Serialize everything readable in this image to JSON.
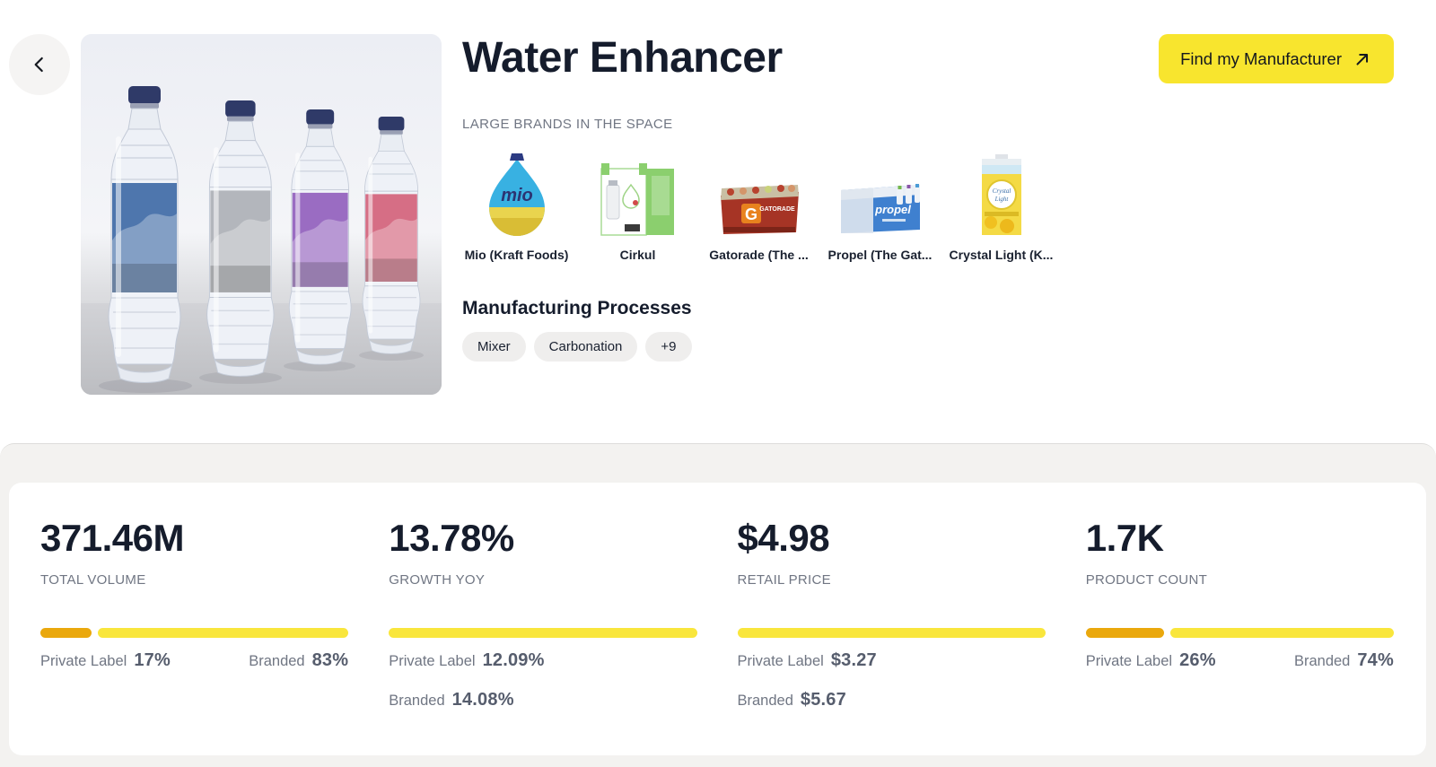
{
  "header": {
    "title": "Water Enhancer",
    "brands_heading": "LARGE BRANDS IN THE SPACE",
    "brands": [
      {
        "name": "Mio (Kraft Foods)",
        "icon": "mio-bottle"
      },
      {
        "name": "Cirkul",
        "icon": "cirkul-box"
      },
      {
        "name": "Gatorade (The ...",
        "icon": "gatorade-pack"
      },
      {
        "name": "Propel (The Gat...",
        "icon": "propel-pack"
      },
      {
        "name": "Crystal Light (K...",
        "icon": "crystal-light-box"
      }
    ],
    "processes_heading": "Manufacturing Processes",
    "process_tags": [
      "Mixer",
      "Carbonation",
      "+9"
    ],
    "cta_label": "Find my Manufacturer"
  },
  "stats": [
    {
      "value": "371.46M",
      "label": "TOTAL VOLUME",
      "segments": [
        {
          "color": "amber",
          "pct": 17
        },
        {
          "color": "yellow",
          "pct": 83
        }
      ],
      "breakdown_layout": "row",
      "items": [
        {
          "label": "Private Label",
          "value": "17%"
        },
        {
          "label": "Branded",
          "value": "83%"
        }
      ]
    },
    {
      "value": "13.78%",
      "label": "GROWTH YOY",
      "segments": [
        {
          "color": "yellow",
          "pct": 100
        }
      ],
      "breakdown_layout": "stack",
      "items": [
        {
          "label": "Private Label",
          "value": "12.09%"
        },
        {
          "label": "Branded",
          "value": "14.08%"
        }
      ]
    },
    {
      "value": "$4.98",
      "label": "RETAIL PRICE",
      "segments": [
        {
          "color": "yellow",
          "pct": 100
        }
      ],
      "breakdown_layout": "stack",
      "items": [
        {
          "label": "Private Label",
          "value": "$3.27"
        },
        {
          "label": "Branded",
          "value": "$5.67"
        }
      ]
    },
    {
      "value": "1.7K",
      "label": "PRODUCT COUNT",
      "segments": [
        {
          "color": "amber",
          "pct": 26
        },
        {
          "color": "yellow",
          "pct": 74
        }
      ],
      "breakdown_layout": "row",
      "items": [
        {
          "label": "Private Label",
          "value": "26%"
        },
        {
          "label": "Branded",
          "value": "74%"
        }
      ]
    }
  ],
  "colors": {
    "accent_yellow": "#F9E63C",
    "accent_amber": "#EAA80D",
    "button_yellow": "#F8E52E",
    "title_text": "#151C2C",
    "muted_text": "#707683",
    "breakdown_value_text": "#565D6D",
    "section_bg": "#F3F2F0",
    "card_bg": "#FFFFFF",
    "tag_bg": "#EFEEED"
  }
}
